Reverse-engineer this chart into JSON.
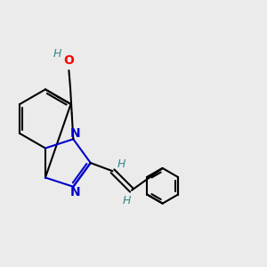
{
  "bg_color": "#ebebeb",
  "bond_color": "#000000",
  "N_color": "#0000cc",
  "O_color": "#ff0000",
  "H_color": "#3a8888",
  "line_width": 1.5,
  "font_size_atom": 10,
  "font_size_H": 9,
  "xlim": [
    -1.5,
    7.5
  ],
  "ylim": [
    -2.5,
    4.5
  ],
  "figsize": [
    3.0,
    3.0
  ],
  "dpi": 100
}
